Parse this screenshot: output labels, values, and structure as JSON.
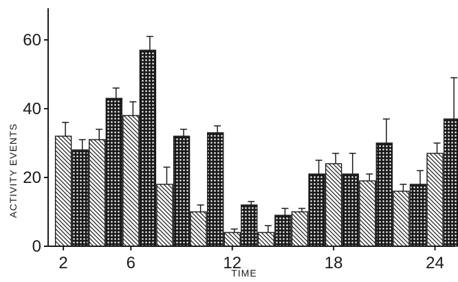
{
  "colors": {
    "ink": "#1a1a1a",
    "paper": "#ffffff",
    "hatch_light": "#bdbdbd"
  },
  "chart_data": {
    "type": "bar",
    "title": "",
    "xlabel": "TIME",
    "ylabel": "ACTIVITY EVENTS",
    "ylim": [
      0,
      70
    ],
    "yticks": [
      0,
      20,
      40,
      60
    ],
    "xlim": [
      1.1,
      25.2
    ],
    "xticks": [
      2,
      6,
      12,
      18,
      24
    ],
    "grid": false,
    "legend": "none",
    "categories": [
      2,
      3,
      4,
      5,
      6,
      7,
      8,
      9,
      10,
      11,
      12,
      13,
      14,
      15,
      16,
      17,
      18,
      19,
      20,
      21,
      22,
      23,
      24
    ],
    "series": [
      {
        "pattern": "diagonal-hatch",
        "x": [
          2,
          4,
          6,
          8,
          10,
          12,
          14,
          16,
          18,
          20,
          22,
          24
        ],
        "values": [
          32,
          31,
          38,
          18,
          10,
          4,
          4,
          10,
          24,
          19,
          16,
          27
        ],
        "errors": [
          4,
          3,
          4,
          5,
          2,
          1,
          2,
          1,
          3,
          2,
          2,
          3
        ]
      },
      {
        "pattern": "cross-hatch",
        "x": [
          3,
          5,
          7,
          9,
          11,
          13,
          15,
          17,
          19,
          21,
          23,
          25
        ],
        "values": [
          28,
          43,
          57,
          32,
          33,
          12,
          9,
          21,
          21,
          30,
          18,
          37
        ],
        "errors": [
          3,
          3,
          4,
          2,
          2,
          1,
          2,
          4,
          6,
          7,
          4,
          12
        ]
      }
    ]
  }
}
